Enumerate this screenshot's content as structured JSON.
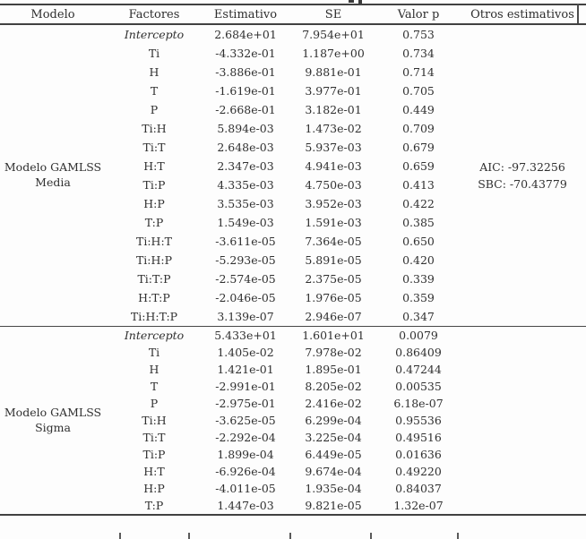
{
  "table": {
    "headers": [
      "Modelo",
      "Factores",
      "Estimativo",
      "SE",
      "Valor p",
      "Otros estimativos"
    ],
    "groups": [
      {
        "model_label_lines": [
          "Modelo GAMLSS",
          "Media"
        ],
        "other_estimates": [
          "AIC: -97.32256",
          "SBC: -70.43779"
        ],
        "rows": [
          {
            "factor": "Intercepto",
            "italic": true,
            "estimate": "2.684e+01",
            "se": "7.954e+01",
            "p": "0.753"
          },
          {
            "factor": "Ti",
            "estimate": "-4.332e-01",
            "se": "1.187e+00",
            "p": "0.734"
          },
          {
            "factor": "H",
            "estimate": "-3.886e-01",
            "se": "9.881e-01",
            "p": "0.714"
          },
          {
            "factor": "T",
            "estimate": "-1.619e-01",
            "se": "3.977e-01",
            "p": "0.705"
          },
          {
            "factor": "P",
            "estimate": "-2.668e-01",
            "se": "3.182e-01",
            "p": "0.449"
          },
          {
            "factor": "Ti:H",
            "estimate": "5.894e-03",
            "se": "1.473e-02",
            "p": "0.709"
          },
          {
            "factor": "Ti:T",
            "estimate": "2.648e-03",
            "se": "5.937e-03",
            "p": "0.679"
          },
          {
            "factor": "H:T",
            "estimate": "2.347e-03",
            "se": "4.941e-03",
            "p": "0.659"
          },
          {
            "factor": "Ti:P",
            "estimate": "4.335e-03",
            "se": "4.750e-03",
            "p": "0.413"
          },
          {
            "factor": "H:P",
            "estimate": "3.535e-03",
            "se": "3.952e-03",
            "p": "0.422"
          },
          {
            "factor": "T:P",
            "estimate": "1.549e-03",
            "se": "1.591e-03",
            "p": "0.385"
          },
          {
            "factor": "Ti:H:T",
            "estimate": "-3.611e-05",
            "se": "7.364e-05",
            "p": "0.650"
          },
          {
            "factor": "Ti:H:P",
            "estimate": "-5.293e-05",
            "se": "5.891e-05",
            "p": "0.420"
          },
          {
            "factor": "Ti:T:P",
            "estimate": "-2.574e-05",
            "se": "2.375e-05",
            "p": "0.339"
          },
          {
            "factor": "H:T:P",
            "estimate": "-2.046e-05",
            "se": "1.976e-05",
            "p": "0.359"
          },
          {
            "factor": "Ti:H:T:P",
            "estimate": "3.139e-07",
            "se": "2.946e-07",
            "p": "0.347"
          }
        ]
      },
      {
        "model_label_lines": [
          "Modelo GAMLSS",
          "Sigma"
        ],
        "other_estimates": [],
        "rows": [
          {
            "factor": "Intercepto",
            "italic": true,
            "estimate": "5.433e+01",
            "se": "1.601e+01",
            "p": "0.0079"
          },
          {
            "factor": "Ti",
            "estimate": "1.405e-02",
            "se": "7.978e-02",
            "p": "0.86409"
          },
          {
            "factor": "H",
            "estimate": "1.421e-01",
            "se": "1.895e-01",
            "p": "0.47244"
          },
          {
            "factor": "T",
            "estimate": "-2.991e-01",
            "se": "8.205e-02",
            "p": "0.00535"
          },
          {
            "factor": "P",
            "estimate": "-2.975e-01",
            "se": "2.416e-02",
            "p": "6.18e-07"
          },
          {
            "factor": "Ti:H",
            "estimate": "-3.625e-05",
            "se": "6.299e-04",
            "p": "0.95536"
          },
          {
            "factor": "Ti:T",
            "estimate": "-2.292e-04",
            "se": "3.225e-04",
            "p": "0.49516"
          },
          {
            "factor": "Ti:P",
            "estimate": "1.899e-04",
            "se": "6.449e-05",
            "p": "0.01636"
          },
          {
            "factor": "H:T",
            "estimate": "-6.926e-04",
            "se": "9.674e-04",
            "p": "0.49220"
          },
          {
            "factor": "H:P",
            "estimate": "-4.011e-05",
            "se": "1.935e-04",
            "p": "0.84037"
          },
          {
            "factor": "T:P",
            "estimate": "1.447e-03",
            "se": "9.821e-05",
            "p": "1.32e-07"
          }
        ]
      }
    ]
  }
}
